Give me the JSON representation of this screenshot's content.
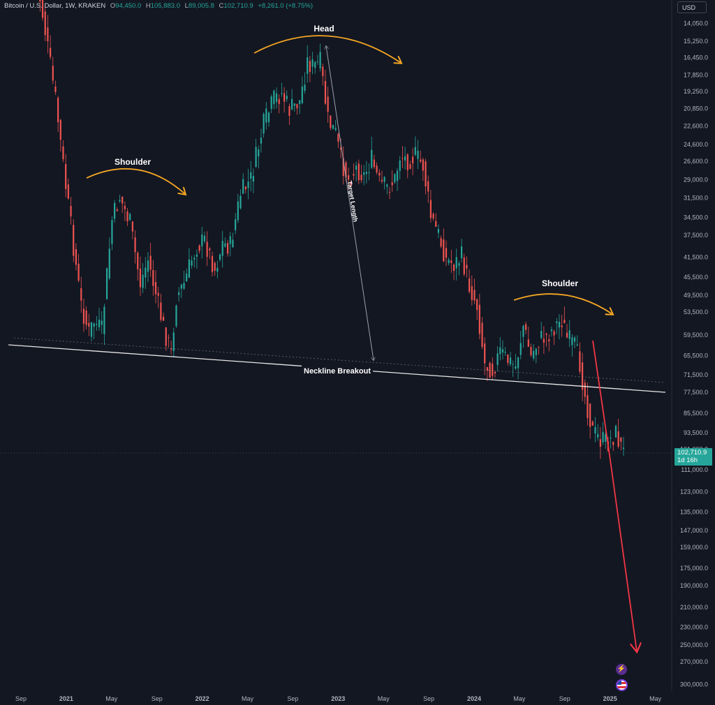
{
  "header": {
    "symbol": "Bitcoin / U.S. Dollar, 1W, KRAKEN",
    "open_label": "O",
    "open_value": "94,450.0",
    "high_label": "H",
    "high_value": "105,883.0",
    "low_label": "L",
    "low_value": "89,005.8",
    "close_label": "C",
    "close_value": "102,710.9",
    "change": "+8,261.0 (+8.75%)"
  },
  "currency_button": "USD",
  "price_tag": {
    "price": "102,710.9",
    "countdown": "1d 16h"
  },
  "icons": {
    "bolt": "lightning-icon",
    "flag": "us-flag-icon"
  },
  "colors": {
    "up": "#26a69a",
    "down": "#ef5350",
    "annotation_arc": "#f5a623",
    "projection": "#f23645",
    "neckline": "#ffffff"
  },
  "chart_data": {
    "type": "candlestick",
    "scale": "inverted-log",
    "y_ticks": [
      "14,050.0",
      "15,250.0",
      "16,450.0",
      "17,850.0",
      "19,250.0",
      "20,850.0",
      "22,600.0",
      "24,600.0",
      "26,600.0",
      "29,000.0",
      "31,500.0",
      "34,500.0",
      "37,500.0",
      "41,500.0",
      "45,500.0",
      "49,500.0",
      "53,500.0",
      "59,500.0",
      "65,500.0",
      "71,500.0",
      "77,500.0",
      "85,500.0",
      "93,500.0",
      "101,000.0",
      "111,000.0",
      "123,000.0",
      "135,000.0",
      "147,000.0",
      "159,000.0",
      "175,000.0",
      "190,000.0",
      "210,000.0",
      "230,000.0",
      "250,000.0",
      "270,000.0",
      "300,000.0"
    ],
    "x_ticks": [
      "Sep",
      "2021",
      "May",
      "Sep",
      "2022",
      "May",
      "Sep",
      "2023",
      "May",
      "Sep",
      "2024",
      "May",
      "Sep",
      "2025",
      "May"
    ],
    "annotations": {
      "left_shoulder": "Shoulder",
      "head": "Head",
      "right_shoulder": "Shoulder",
      "target": "Target Length",
      "neckline": "Neckline Breakout"
    },
    "keypoints": [
      {
        "t": 0,
        "p": 11000
      },
      {
        "t": 3,
        "p": 13500
      },
      {
        "t": 8,
        "p": 20000
      },
      {
        "t": 12,
        "p": 30000
      },
      {
        "t": 18,
        "p": 52000
      },
      {
        "t": 21,
        "p": 59000
      },
      {
        "t": 23,
        "p": 56000
      },
      {
        "t": 26,
        "p": 58500
      },
      {
        "t": 30,
        "p": 35000
      },
      {
        "t": 33,
        "p": 31500
      },
      {
        "t": 37,
        "p": 35500
      },
      {
        "t": 41,
        "p": 47000
      },
      {
        "t": 44,
        "p": 42000
      },
      {
        "t": 48,
        "p": 52000
      },
      {
        "t": 50,
        "p": 57500
      },
      {
        "t": 53,
        "p": 65000
      },
      {
        "t": 55,
        "p": 50000
      },
      {
        "t": 58,
        "p": 47000
      },
      {
        "t": 61,
        "p": 42000
      },
      {
        "t": 63,
        "p": 39500
      },
      {
        "t": 66,
        "p": 38500
      },
      {
        "t": 70,
        "p": 44000
      },
      {
        "t": 73,
        "p": 39000
      },
      {
        "t": 76,
        "p": 39500
      },
      {
        "t": 80,
        "p": 31000
      },
      {
        "t": 84,
        "p": 29000
      },
      {
        "t": 89,
        "p": 22500
      },
      {
        "t": 93,
        "p": 20000
      },
      {
        "t": 96,
        "p": 19500
      },
      {
        "t": 99,
        "p": 21000
      },
      {
        "t": 103,
        "p": 20200
      },
      {
        "t": 106,
        "p": 16800
      },
      {
        "t": 108,
        "p": 17200
      },
      {
        "t": 111,
        "p": 16900
      },
      {
        "t": 114,
        "p": 22000
      },
      {
        "t": 117,
        "p": 23500
      },
      {
        "t": 119,
        "p": 26500
      },
      {
        "t": 122,
        "p": 29000
      },
      {
        "t": 125,
        "p": 27500
      },
      {
        "t": 128,
        "p": 28500
      },
      {
        "t": 131,
        "p": 26500
      },
      {
        "t": 134,
        "p": 29500
      },
      {
        "t": 137,
        "p": 30200
      },
      {
        "t": 140,
        "p": 29000
      },
      {
        "t": 142,
        "p": 26000
      },
      {
        "t": 145,
        "p": 26500
      },
      {
        "t": 148,
        "p": 26000
      },
      {
        "t": 151,
        "p": 27200
      },
      {
        "t": 154,
        "p": 34500
      },
      {
        "t": 157,
        "p": 37500
      },
      {
        "t": 160,
        "p": 42000
      },
      {
        "t": 163,
        "p": 43000
      },
      {
        "t": 166,
        "p": 41500
      },
      {
        "t": 169,
        "p": 47500
      },
      {
        "t": 172,
        "p": 52000
      },
      {
        "t": 175,
        "p": 68000
      },
      {
        "t": 178,
        "p": 70000
      },
      {
        "t": 181,
        "p": 64500
      },
      {
        "t": 184,
        "p": 67000
      },
      {
        "t": 187,
        "p": 69000
      },
      {
        "t": 190,
        "p": 57000
      },
      {
        "t": 193,
        "p": 66000
      },
      {
        "t": 196,
        "p": 61000
      },
      {
        "t": 199,
        "p": 60000
      },
      {
        "t": 202,
        "p": 57500
      },
      {
        "t": 205,
        "p": 55500
      },
      {
        "t": 207,
        "p": 60500
      },
      {
        "t": 210,
        "p": 63000
      },
      {
        "t": 212,
        "p": 68000
      },
      {
        "t": 214,
        "p": 79000
      },
      {
        "t": 217,
        "p": 93000
      },
      {
        "t": 220,
        "p": 97000
      },
      {
        "t": 223,
        "p": 98000
      },
      {
        "t": 226,
        "p": 94000
      },
      {
        "t": 229,
        "p": 102710
      }
    ]
  }
}
